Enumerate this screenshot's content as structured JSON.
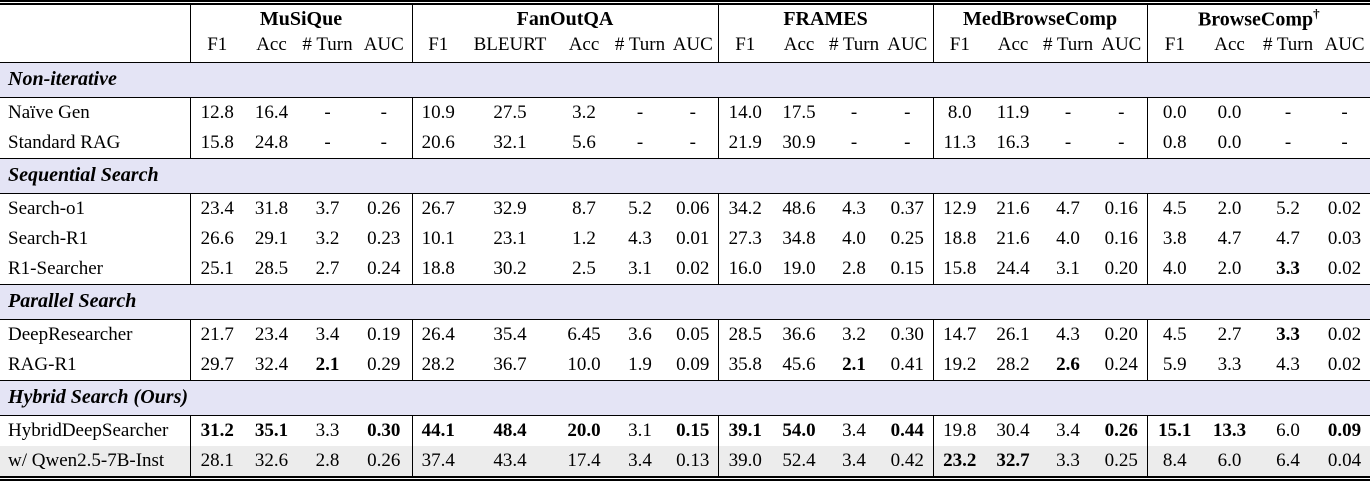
{
  "colors": {
    "section_band": "#e4e4f5",
    "shaded_row": "#ececec",
    "rule": "#000000",
    "text": "#000000",
    "background": "#ffffff"
  },
  "table": {
    "groups": [
      {
        "name": "MuSiQue",
        "sup": "",
        "sub": [
          "F1",
          "Acc",
          "# Turn",
          "AUC"
        ]
      },
      {
        "name": "FanOutQA",
        "sup": "",
        "sub": [
          "F1",
          "BLEURT",
          "Acc",
          "# Turn",
          "AUC"
        ]
      },
      {
        "name": "FRAMES",
        "sup": "",
        "sub": [
          "F1",
          "Acc",
          "# Turn",
          "AUC"
        ]
      },
      {
        "name": "MedBrowseComp",
        "sup": "",
        "sub": [
          "F1",
          "Acc",
          "# Turn",
          "AUC"
        ]
      },
      {
        "name": "BrowseComp",
        "sup": "†",
        "sub": [
          "F1",
          "Acc",
          "# Turn",
          "AUC"
        ]
      }
    ],
    "sections": [
      {
        "title": "Non-iterative",
        "rows": [
          {
            "method": "Naïve Gen",
            "shaded": false,
            "values": [
              "12.8",
              "16.4",
              "-",
              "-",
              "10.9",
              "27.5",
              "3.2",
              "-",
              "-",
              "14.0",
              "17.5",
              "-",
              "-",
              "8.0",
              "11.9",
              "-",
              "-",
              "0.0",
              "0.0",
              "-",
              "-"
            ]
          },
          {
            "method": "Standard RAG",
            "shaded": false,
            "values": [
              "15.8",
              "24.8",
              "-",
              "-",
              "20.6",
              "32.1",
              "5.6",
              "-",
              "-",
              "21.9",
              "30.9",
              "-",
              "-",
              "11.3",
              "16.3",
              "-",
              "-",
              "0.8",
              "0.0",
              "-",
              "-"
            ]
          }
        ]
      },
      {
        "title": "Sequential Search",
        "rows": [
          {
            "method": "Search-o1",
            "shaded": false,
            "values": [
              "23.4",
              "31.8",
              "3.7",
              "0.26",
              "26.7",
              "32.9",
              "8.7",
              "5.2",
              "0.06",
              "34.2",
              "48.6",
              "4.3",
              "0.37",
              "12.9",
              "21.6",
              "4.7",
              "0.16",
              "4.5",
              "2.0",
              "5.2",
              "0.02"
            ]
          },
          {
            "method": "Search-R1",
            "shaded": false,
            "values": [
              "26.6",
              "29.1",
              "3.2",
              "0.23",
              "10.1",
              "23.1",
              "1.2",
              "4.3",
              "0.01",
              "27.3",
              "34.8",
              "4.0",
              "0.25",
              "18.8",
              "21.6",
              "4.0",
              "0.16",
              "3.8",
              "4.7",
              "4.7",
              "0.03"
            ]
          },
          {
            "method": "R1-Searcher",
            "shaded": false,
            "values": [
              "25.1",
              "28.5",
              "2.7",
              "0.24",
              "18.8",
              "30.2",
              "2.5",
              "3.1",
              "0.02",
              "16.0",
              "19.0",
              "2.8",
              "0.15",
              "15.8",
              "24.4",
              "3.1",
              "0.20",
              "4.0",
              "2.0",
              {
                "v": "3.3",
                "b": 1
              },
              "0.02"
            ]
          }
        ]
      },
      {
        "title": "Parallel Search",
        "rows": [
          {
            "method": "DeepResearcher",
            "shaded": false,
            "values": [
              "21.7",
              "23.4",
              "3.4",
              "0.19",
              "26.4",
              "35.4",
              "6.45",
              "3.6",
              "0.05",
              "28.5",
              "36.6",
              "3.2",
              "0.30",
              "14.7",
              "26.1",
              "4.3",
              "0.20",
              "4.5",
              "2.7",
              {
                "v": "3.3",
                "b": 1
              },
              "0.02"
            ]
          },
          {
            "method": "RAG-R1",
            "shaded": false,
            "values": [
              "29.7",
              "32.4",
              {
                "v": "2.1",
                "b": 1
              },
              "0.29",
              "28.2",
              "36.7",
              "10.0",
              "1.9",
              "0.09",
              "35.8",
              "45.6",
              {
                "v": "2.1",
                "b": 1
              },
              "0.41",
              "19.2",
              "28.2",
              {
                "v": "2.6",
                "b": 1
              },
              "0.24",
              "5.9",
              "3.3",
              "4.3",
              "0.02"
            ]
          }
        ]
      },
      {
        "title": "Hybrid Search (Ours)",
        "rows": [
          {
            "method": "HybridDeepSearcher",
            "shaded": false,
            "values": [
              {
                "v": "31.2",
                "b": 1
              },
              {
                "v": "35.1",
                "b": 1
              },
              "3.3",
              {
                "v": "0.30",
                "b": 1
              },
              {
                "v": "44.1",
                "b": 1
              },
              {
                "v": "48.4",
                "b": 1
              },
              {
                "v": "20.0",
                "b": 1
              },
              "3.1",
              {
                "v": "0.15",
                "b": 1
              },
              {
                "v": "39.1",
                "b": 1
              },
              {
                "v": "54.0",
                "b": 1
              },
              "3.4",
              {
                "v": "0.44",
                "b": 1
              },
              "19.8",
              "30.4",
              "3.4",
              {
                "v": "0.26",
                "b": 1
              },
              {
                "v": "15.1",
                "b": 1
              },
              {
                "v": "13.3",
                "b": 1
              },
              "6.0",
              {
                "v": "0.09",
                "b": 1
              }
            ]
          },
          {
            "method": "w/ Qwen2.5-7B-Inst",
            "shaded": true,
            "values": [
              "28.1",
              "32.6",
              "2.8",
              "0.26",
              "37.4",
              "43.4",
              "17.4",
              "3.4",
              "0.13",
              "39.0",
              "52.4",
              "3.4",
              "0.42",
              {
                "v": "23.2",
                "b": 1
              },
              {
                "v": "32.7",
                "b": 1
              },
              "3.3",
              "0.25",
              "8.4",
              "6.0",
              "6.4",
              "0.04"
            ]
          }
        ]
      }
    ]
  }
}
